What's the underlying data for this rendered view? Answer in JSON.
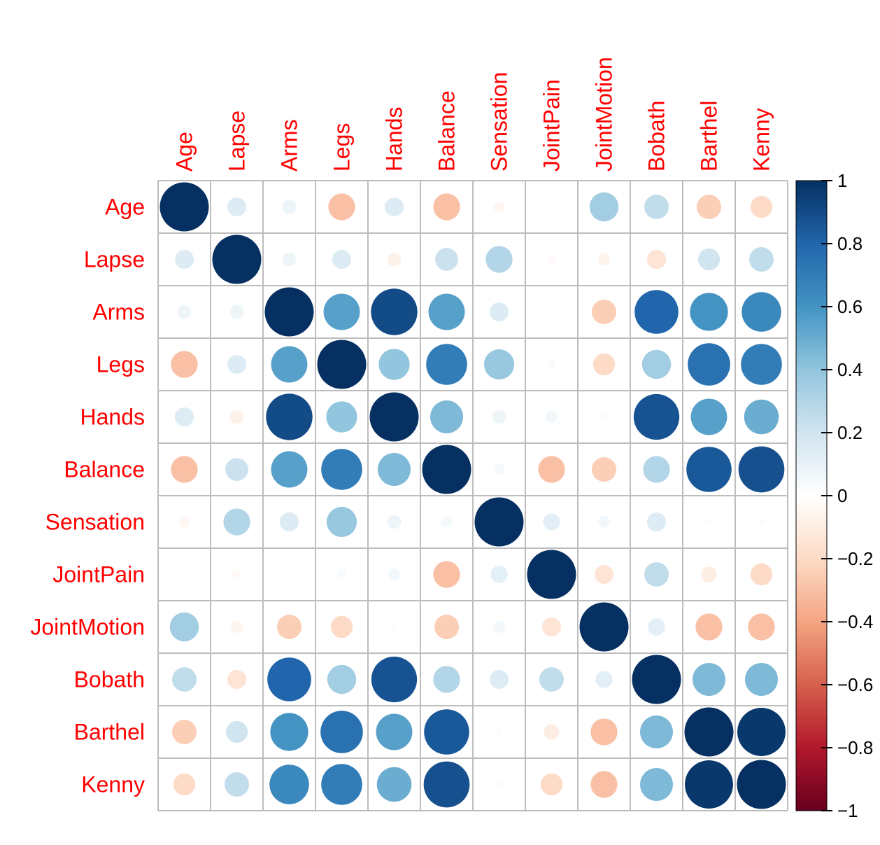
{
  "chart_data": {
    "type": "heatmap",
    "variables": [
      "Age",
      "Lapse",
      "Arms",
      "Legs",
      "Hands",
      "Balance",
      "Sensation",
      "JointPain",
      "JointMotion",
      "Bobath",
      "Barthel",
      "Kenny"
    ],
    "matrix": [
      [
        1.0,
        0.15,
        0.08,
        -0.3,
        0.15,
        -0.3,
        -0.05,
        0.0,
        0.35,
        0.25,
        -0.25,
        -0.2
      ],
      [
        0.15,
        1.0,
        0.08,
        0.15,
        -0.08,
        0.22,
        0.3,
        -0.03,
        -0.06,
        -0.15,
        0.2,
        0.25
      ],
      [
        0.08,
        0.08,
        1.0,
        0.55,
        0.9,
        0.55,
        0.15,
        0.0,
        -0.25,
        0.8,
        0.6,
        0.65
      ],
      [
        -0.3,
        0.15,
        0.55,
        1.0,
        0.4,
        0.7,
        0.38,
        0.03,
        -0.2,
        0.35,
        0.75,
        0.7
      ],
      [
        0.15,
        -0.08,
        0.9,
        0.4,
        1.0,
        0.45,
        0.08,
        0.06,
        -0.02,
        0.87,
        0.55,
        0.5
      ],
      [
        -0.3,
        0.22,
        0.55,
        0.7,
        0.45,
        1.0,
        0.05,
        -0.3,
        -0.25,
        0.3,
        0.85,
        0.88
      ],
      [
        -0.05,
        0.3,
        0.15,
        0.38,
        0.08,
        0.05,
        1.0,
        0.12,
        0.06,
        0.15,
        0.02,
        0.02
      ],
      [
        0.0,
        -0.03,
        0.0,
        0.03,
        0.06,
        -0.3,
        0.12,
        1.0,
        -0.15,
        0.25,
        -0.1,
        -0.2
      ],
      [
        0.35,
        -0.06,
        -0.25,
        -0.2,
        -0.02,
        -0.25,
        0.06,
        -0.15,
        1.0,
        0.12,
        -0.3,
        -0.3
      ],
      [
        0.25,
        -0.15,
        0.8,
        0.35,
        0.87,
        0.3,
        0.15,
        0.25,
        0.12,
        1.0,
        0.45,
        0.45
      ],
      [
        -0.25,
        0.2,
        0.6,
        0.75,
        0.55,
        0.85,
        0.02,
        -0.1,
        -0.3,
        0.45,
        1.0,
        0.97
      ],
      [
        -0.2,
        0.25,
        0.65,
        0.7,
        0.5,
        0.88,
        0.02,
        -0.2,
        -0.3,
        0.45,
        0.97,
        1.0
      ]
    ],
    "colorbar": {
      "range": [
        -1,
        1
      ],
      "ticks": [
        "1",
        "0.8",
        "0.6",
        "0.4",
        "0.2",
        "0",
        "−0.2",
        "−0.4",
        "−0.6",
        "−0.8",
        "−1"
      ],
      "tick_values": [
        1,
        0.8,
        0.6,
        0.4,
        0.2,
        0,
        -0.2,
        -0.4,
        -0.6,
        -0.8,
        -1
      ]
    },
    "label_color": "#ff0000",
    "grid": true,
    "colorbar_position": "right"
  }
}
